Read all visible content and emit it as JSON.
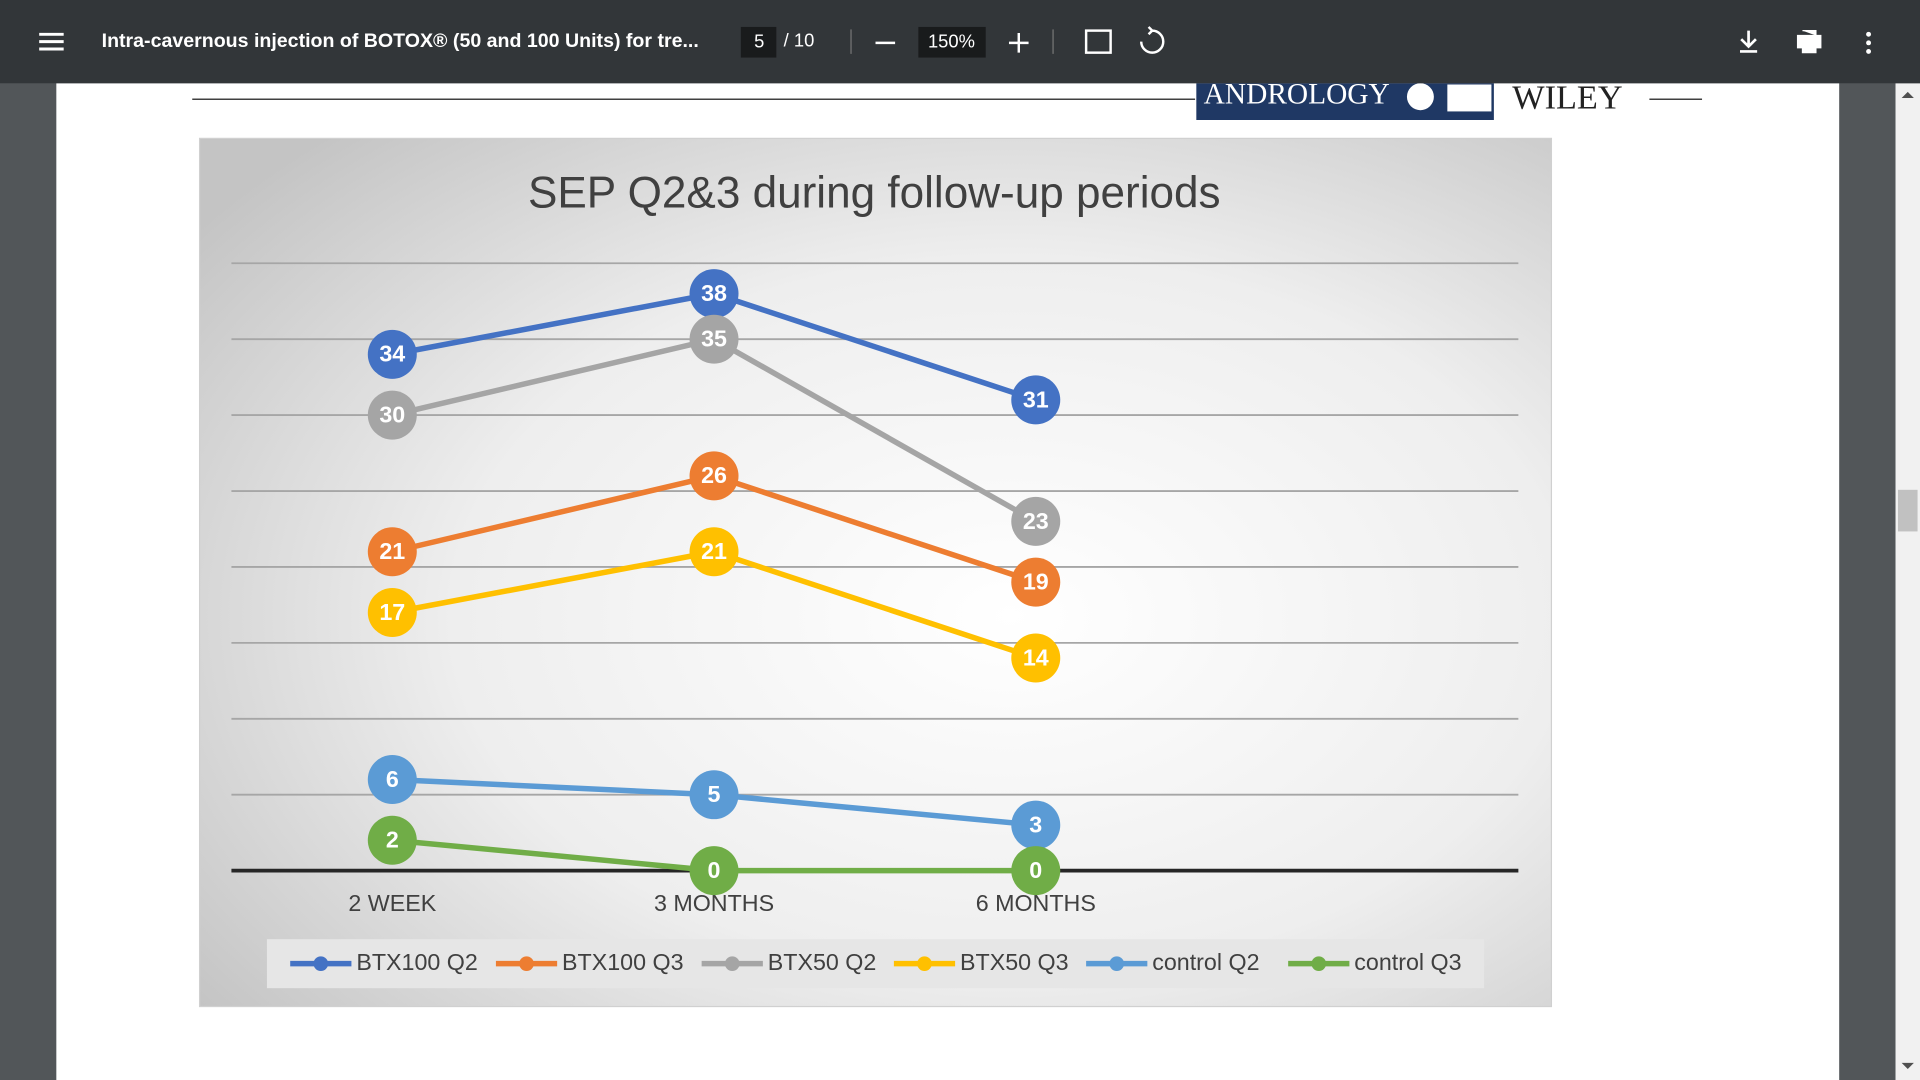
{
  "toolbar": {
    "title": "Intra-cavernous injection of BOTOX® (50 and 100 Units) for tre...",
    "page": "5",
    "page_count": "/ 10",
    "zoom": "150%"
  },
  "header": {
    "journal": "ANDROLOGY",
    "publisher": "WILEY"
  },
  "chart_data": {
    "type": "line",
    "title": "SEP Q2&3 during follow-up periods",
    "categories": [
      "2 WEEK",
      "3 MONTHS",
      "6 MONTHS",
      null
    ],
    "ylim": [
      0,
      40
    ],
    "yticks": [
      0,
      5,
      10,
      15,
      20,
      25,
      30,
      35,
      40
    ],
    "grid": true,
    "legend": "bottom",
    "series": [
      {
        "name": "BTX100 Q2",
        "color": "#4472c4",
        "values": [
          34,
          38,
          31,
          null
        ]
      },
      {
        "name": "BTX100 Q3",
        "color": "#ed7d31",
        "values": [
          21,
          26,
          19,
          null
        ]
      },
      {
        "name": "BTX50 Q2",
        "color": "#a5a5a5",
        "values": [
          30,
          35,
          23,
          null
        ]
      },
      {
        "name": "BTX50 Q3",
        "color": "#ffc000",
        "values": [
          17,
          21,
          14,
          null
        ]
      },
      {
        "name": "control Q2",
        "color": "#5b9bd5",
        "values": [
          6,
          5,
          3,
          null
        ]
      },
      {
        "name": "control Q3",
        "color": "#70ad47",
        "values": [
          2,
          0,
          0,
          null
        ]
      }
    ]
  }
}
